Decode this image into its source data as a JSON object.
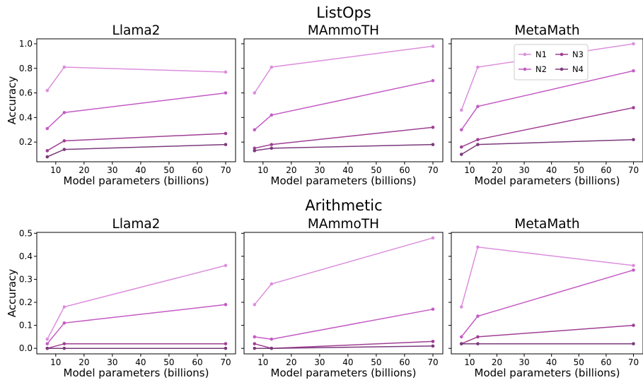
{
  "figure": {
    "row_titles": [
      "ListOps",
      "Arithmetic"
    ],
    "xlabel": "Model parameters (billions)",
    "ylabel": "Accuracy"
  },
  "chart_data": [
    {
      "type": "line",
      "suptitle": "ListOps",
      "title": "Llama2",
      "xlabel": "Model parameters (billions)",
      "ylabel": "Accuracy",
      "x": [
        7,
        13,
        70
      ],
      "xlim": [
        3.3,
        73.5
      ],
      "ylim": [
        0.04,
        1.04
      ],
      "xticks": [
        10,
        20,
        30,
        40,
        50,
        60,
        70
      ],
      "yticks": [
        0.2,
        0.4,
        0.6,
        0.8,
        1.0
      ],
      "series": [
        {
          "name": "N1",
          "values": [
            0.62,
            0.81,
            0.77
          ]
        },
        {
          "name": "N2",
          "values": [
            0.31,
            0.44,
            0.6
          ]
        },
        {
          "name": "N3",
          "values": [
            0.13,
            0.21,
            0.27
          ]
        },
        {
          "name": "N4",
          "values": [
            0.08,
            0.14,
            0.18
          ]
        }
      ]
    },
    {
      "type": "line",
      "suptitle": "ListOps",
      "title": "MAmmoTH",
      "xlabel": "Model parameters (billions)",
      "ylabel": "",
      "x": [
        7,
        13,
        70
      ],
      "xlim": [
        3.3,
        73.5
      ],
      "ylim": [
        0.04,
        1.04
      ],
      "xticks": [
        10,
        20,
        30,
        40,
        50,
        60,
        70
      ],
      "yticks": [
        0.2,
        0.4,
        0.6,
        0.8,
        1.0
      ],
      "series": [
        {
          "name": "N1",
          "values": [
            0.6,
            0.81,
            0.98
          ]
        },
        {
          "name": "N2",
          "values": [
            0.3,
            0.42,
            0.7
          ]
        },
        {
          "name": "N3",
          "values": [
            0.15,
            0.18,
            0.32
          ]
        },
        {
          "name": "N4",
          "values": [
            0.13,
            0.15,
            0.18
          ]
        }
      ]
    },
    {
      "type": "line",
      "suptitle": "ListOps",
      "title": "MetaMath",
      "xlabel": "Model parameters (billions)",
      "ylabel": "",
      "x": [
        7,
        13,
        70
      ],
      "xlim": [
        3.3,
        73.5
      ],
      "ylim": [
        0.04,
        1.04
      ],
      "xticks": [
        10,
        20,
        30,
        40,
        50,
        60,
        70
      ],
      "yticks": [
        0.2,
        0.4,
        0.6,
        0.8,
        1.0
      ],
      "legend": "top-right",
      "series": [
        {
          "name": "N1",
          "values": [
            0.46,
            0.81,
            1.0
          ]
        },
        {
          "name": "N2",
          "values": [
            0.3,
            0.49,
            0.78
          ]
        },
        {
          "name": "N3",
          "values": [
            0.16,
            0.22,
            0.48
          ]
        },
        {
          "name": "N4",
          "values": [
            0.1,
            0.18,
            0.22
          ]
        }
      ]
    },
    {
      "type": "line",
      "suptitle": "Arithmetic",
      "title": "Llama2",
      "xlabel": "Model parameters (billions)",
      "ylabel": "Accuracy",
      "x": [
        7,
        13,
        70
      ],
      "xlim": [
        3.3,
        73.5
      ],
      "ylim": [
        -0.024,
        0.504
      ],
      "xticks": [
        10,
        20,
        30,
        40,
        50,
        60,
        70
      ],
      "yticks": [
        0.0,
        0.1,
        0.2,
        0.3,
        0.4,
        0.5
      ],
      "series": [
        {
          "name": "N1",
          "values": [
            0.04,
            0.18,
            0.36
          ]
        },
        {
          "name": "N2",
          "values": [
            0.02,
            0.11,
            0.19
          ]
        },
        {
          "name": "N3",
          "values": [
            0.0,
            0.02,
            0.02
          ]
        },
        {
          "name": "N4",
          "values": [
            0.0,
            0.0,
            0.0
          ]
        }
      ]
    },
    {
      "type": "line",
      "suptitle": "Arithmetic",
      "title": "MAmmoTH",
      "xlabel": "Model parameters (billions)",
      "ylabel": "",
      "x": [
        7,
        13,
        70
      ],
      "xlim": [
        3.3,
        73.5
      ],
      "ylim": [
        -0.024,
        0.504
      ],
      "xticks": [
        10,
        20,
        30,
        40,
        50,
        60,
        70
      ],
      "yticks": [
        0.0,
        0.1,
        0.2,
        0.3,
        0.4,
        0.5
      ],
      "series": [
        {
          "name": "N1",
          "values": [
            0.19,
            0.28,
            0.48
          ]
        },
        {
          "name": "N2",
          "values": [
            0.05,
            0.04,
            0.17
          ]
        },
        {
          "name": "N3",
          "values": [
            0.02,
            0.0,
            0.03
          ]
        },
        {
          "name": "N4",
          "values": [
            0.0,
            0.0,
            0.01
          ]
        }
      ]
    },
    {
      "type": "line",
      "suptitle": "Arithmetic",
      "title": "MetaMath",
      "xlabel": "Model parameters (billions)",
      "ylabel": "",
      "x": [
        7,
        13,
        70
      ],
      "xlim": [
        3.3,
        73.5
      ],
      "ylim": [
        -0.024,
        0.504
      ],
      "xticks": [
        10,
        20,
        30,
        40,
        50,
        60,
        70
      ],
      "yticks": [
        0.0,
        0.1,
        0.2,
        0.3,
        0.4,
        0.5
      ],
      "series": [
        {
          "name": "N1",
          "values": [
            0.18,
            0.44,
            0.36
          ]
        },
        {
          "name": "N2",
          "values": [
            0.05,
            0.14,
            0.34
          ]
        },
        {
          "name": "N3",
          "values": [
            0.02,
            0.05,
            0.1
          ]
        },
        {
          "name": "N4",
          "values": [
            0.02,
            0.02,
            0.02
          ]
        }
      ]
    }
  ],
  "legend": {
    "entries": [
      "N1",
      "N2",
      "N3",
      "N4"
    ],
    "placement": "top-right"
  },
  "colors": {
    "N1": "#dc8fdc",
    "N2": "#c45bc4",
    "N3": "#a03f93",
    "N4": "#7b3a7b"
  }
}
